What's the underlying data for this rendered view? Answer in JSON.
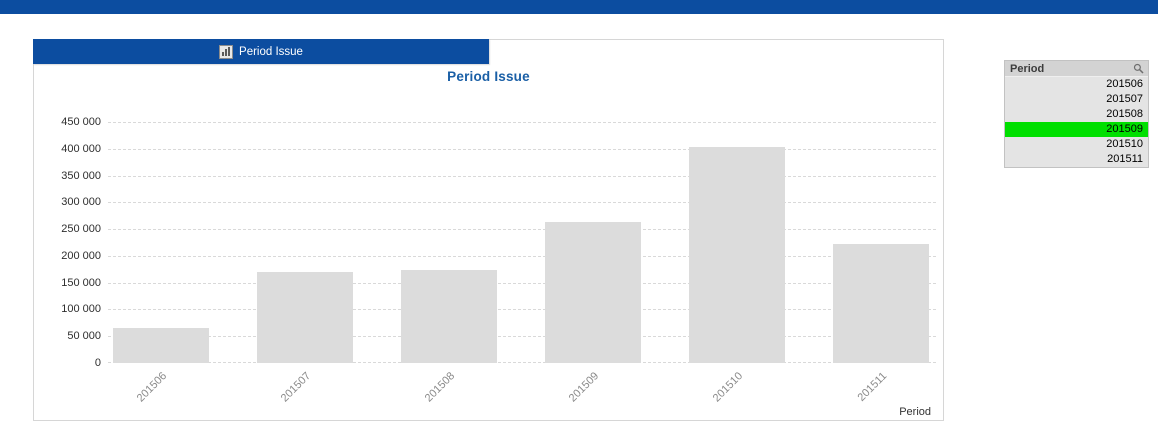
{
  "topbar": {
    "name": "app-header-bar"
  },
  "chart_window": {
    "caption_title": "Period Issue",
    "caption_icon": "bar-chart-icon",
    "chart_title": "Period Issue",
    "x_axis_title": "Period"
  },
  "chart_data": {
    "type": "bar",
    "title": "Period Issue",
    "categories": [
      "201506",
      "201507",
      "201508",
      "201509",
      "201510",
      "201511"
    ],
    "values": [
      65000,
      170000,
      173000,
      264000,
      403000,
      222000
    ],
    "xlabel": "Period",
    "ylabel": "",
    "ylim": [
      0,
      450000
    ],
    "ytick_step": 50000,
    "ytick_labels": [
      "0",
      "50 000",
      "100 000",
      "150 000",
      "200 000",
      "250 000",
      "300 000",
      "350 000",
      "400 000",
      "450 000"
    ],
    "grid": "horizontal-dashed",
    "legend": "none",
    "bar_color": "#DCDCDC"
  },
  "listbox": {
    "title": "Period",
    "search_icon": "magnifier-icon",
    "items": [
      {
        "label": "201506",
        "selected": false
      },
      {
        "label": "201507",
        "selected": false
      },
      {
        "label": "201508",
        "selected": false
      },
      {
        "label": "201509",
        "selected": true
      },
      {
        "label": "201510",
        "selected": false
      },
      {
        "label": "201511",
        "selected": false
      }
    ]
  },
  "colors": {
    "accent_blue": "#0C4DA0",
    "title_blue": "#1A5FA6",
    "bar_fill": "#DCDCDC",
    "selected_green": "#00DF00",
    "gridline": "#D9D9D9"
  }
}
